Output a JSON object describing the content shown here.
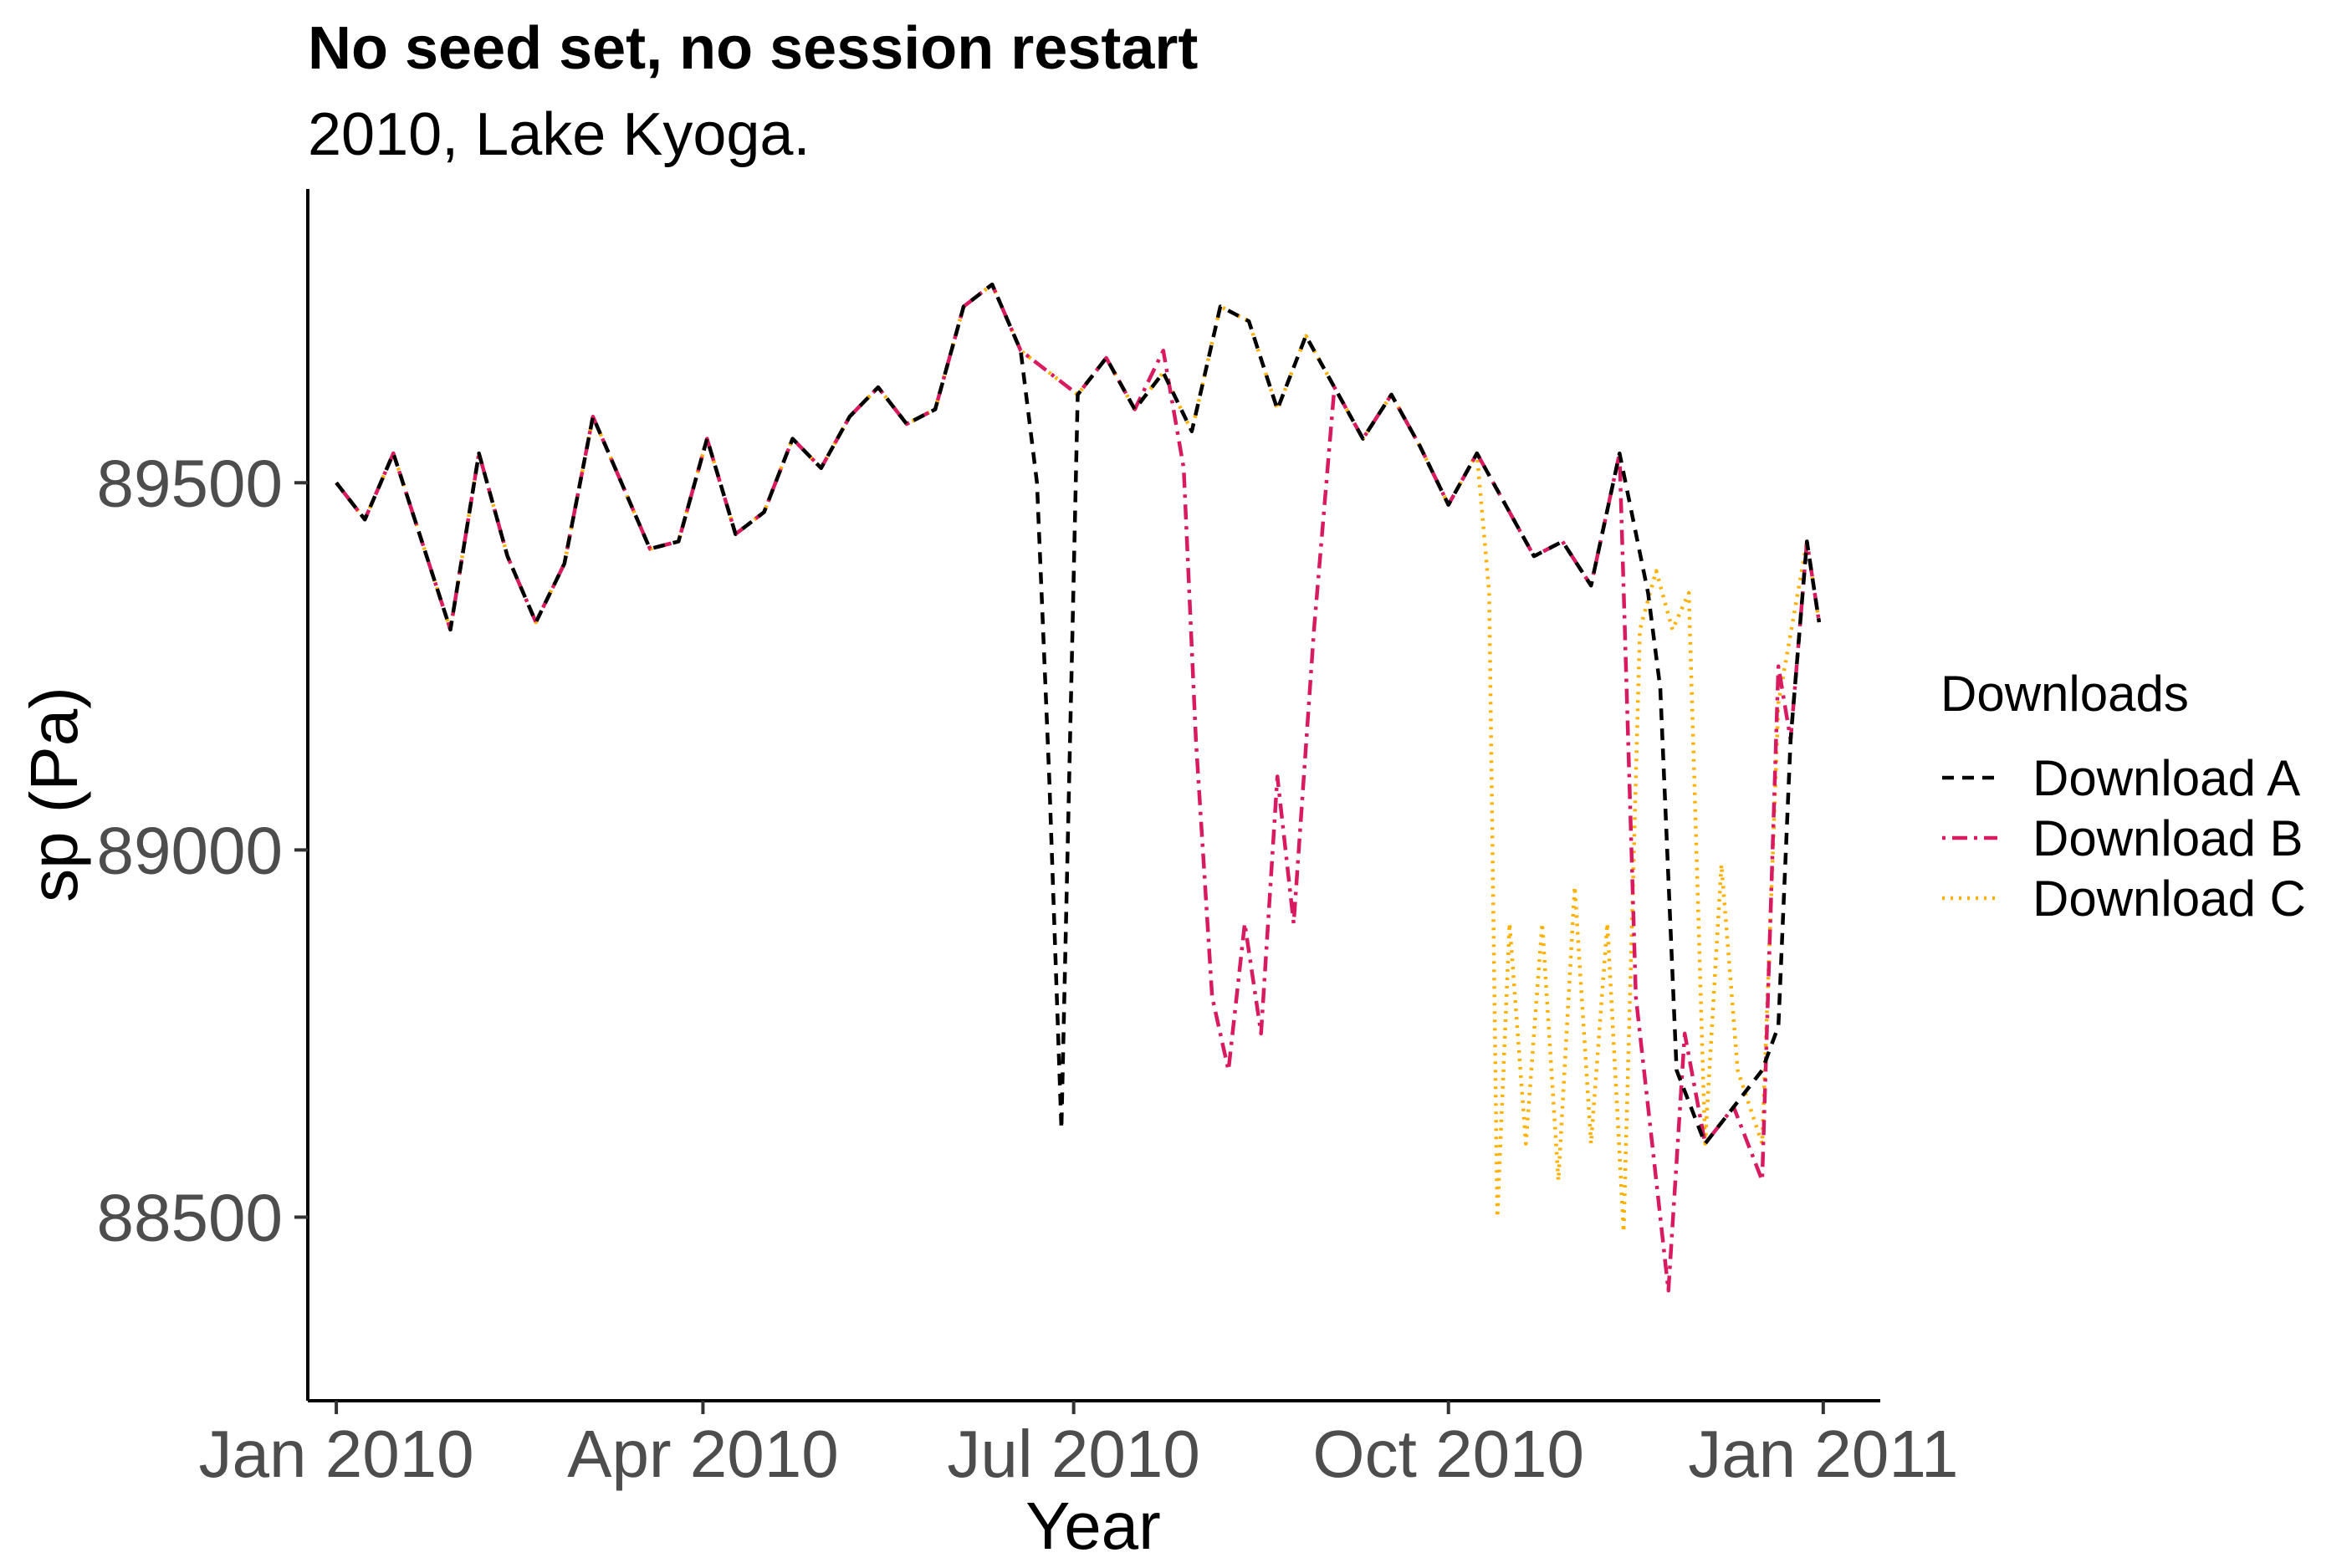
{
  "chart_data": {
    "type": "line",
    "title": "No seed set, no session restart",
    "subtitle": "2010, Lake Kyoga.",
    "xlabel": "Year",
    "ylabel": "sp (Pa)",
    "x_axis": {
      "type": "date",
      "range": [
        "2009-12-25",
        "2011-01-15"
      ],
      "ticks": [
        "2010-01-01",
        "2010-04-01",
        "2010-07-01",
        "2010-10-01",
        "2011-01-01"
      ],
      "tick_labels": [
        "Jan 2010",
        "Apr 2010",
        "Jul 2010",
        "Oct 2010",
        "Jan 2011"
      ]
    },
    "y_axis": {
      "range": [
        88250,
        89900
      ],
      "ticks": [
        88500,
        89000,
        89500
      ],
      "tick_labels": [
        "88500",
        "89000",
        "89500"
      ]
    },
    "grid": false,
    "legend": {
      "title": "Downloads",
      "position": "right"
    },
    "series": [
      {
        "name": "Download A",
        "color": "#000000",
        "dash": "dashed",
        "points": [
          [
            "2010-01-01",
            89500
          ],
          [
            "2010-01-08",
            89450
          ],
          [
            "2010-01-15",
            89540
          ],
          [
            "2010-01-22",
            89420
          ],
          [
            "2010-01-29",
            89300
          ],
          [
            "2010-02-05",
            89540
          ],
          [
            "2010-02-12",
            89400
          ],
          [
            "2010-02-19",
            89310
          ],
          [
            "2010-02-26",
            89390
          ],
          [
            "2010-03-05",
            89590
          ],
          [
            "2010-03-12",
            89500
          ],
          [
            "2010-03-19",
            89410
          ],
          [
            "2010-03-26",
            89420
          ],
          [
            "2010-04-02",
            89560
          ],
          [
            "2010-04-09",
            89430
          ],
          [
            "2010-04-16",
            89460
          ],
          [
            "2010-04-23",
            89560
          ],
          [
            "2010-04-30",
            89520
          ],
          [
            "2010-05-07",
            89590
          ],
          [
            "2010-05-14",
            89630
          ],
          [
            "2010-05-21",
            89580
          ],
          [
            "2010-05-28",
            89600
          ],
          [
            "2010-06-04",
            89740
          ],
          [
            "2010-06-11",
            89770
          ],
          [
            "2010-06-18",
            89680
          ],
          [
            "2010-06-22",
            89500
          ],
          [
            "2010-06-25",
            89100
          ],
          [
            "2010-06-28",
            88620
          ],
          [
            "2010-07-02",
            89620
          ],
          [
            "2010-07-09",
            89670
          ],
          [
            "2010-07-16",
            89600
          ],
          [
            "2010-07-23",
            89650
          ],
          [
            "2010-07-30",
            89570
          ],
          [
            "2010-08-06",
            89740
          ],
          [
            "2010-08-13",
            89720
          ],
          [
            "2010-08-20",
            89600
          ],
          [
            "2010-08-27",
            89700
          ],
          [
            "2010-09-03",
            89630
          ],
          [
            "2010-09-10",
            89560
          ],
          [
            "2010-09-17",
            89620
          ],
          [
            "2010-09-24",
            89550
          ],
          [
            "2010-10-01",
            89470
          ],
          [
            "2010-10-08",
            89540
          ],
          [
            "2010-10-15",
            89470
          ],
          [
            "2010-10-22",
            89400
          ],
          [
            "2010-10-29",
            89420
          ],
          [
            "2010-11-05",
            89360
          ],
          [
            "2010-11-12",
            89540
          ],
          [
            "2010-11-19",
            89350
          ],
          [
            "2010-11-22",
            89220
          ],
          [
            "2010-11-26",
            88700
          ],
          [
            "2010-12-03",
            88600
          ],
          [
            "2010-12-10",
            88650
          ],
          [
            "2010-12-17",
            88700
          ],
          [
            "2010-12-21",
            88760
          ],
          [
            "2010-12-24",
            89150
          ],
          [
            "2010-12-28",
            89420
          ],
          [
            "2010-12-31",
            89310
          ]
        ]
      },
      {
        "name": "Download B",
        "color": "#d81b60",
        "dash": "dotdash",
        "points": [
          [
            "2010-01-01",
            89500
          ],
          [
            "2010-01-08",
            89450
          ],
          [
            "2010-01-15",
            89540
          ],
          [
            "2010-01-22",
            89420
          ],
          [
            "2010-01-29",
            89300
          ],
          [
            "2010-02-05",
            89540
          ],
          [
            "2010-02-12",
            89400
          ],
          [
            "2010-02-19",
            89310
          ],
          [
            "2010-02-26",
            89390
          ],
          [
            "2010-03-05",
            89590
          ],
          [
            "2010-03-12",
            89500
          ],
          [
            "2010-03-19",
            89410
          ],
          [
            "2010-03-26",
            89420
          ],
          [
            "2010-04-02",
            89560
          ],
          [
            "2010-04-09",
            89430
          ],
          [
            "2010-04-16",
            89460
          ],
          [
            "2010-04-23",
            89560
          ],
          [
            "2010-04-30",
            89520
          ],
          [
            "2010-05-07",
            89590
          ],
          [
            "2010-05-14",
            89630
          ],
          [
            "2010-05-21",
            89580
          ],
          [
            "2010-05-28",
            89600
          ],
          [
            "2010-06-04",
            89740
          ],
          [
            "2010-06-11",
            89770
          ],
          [
            "2010-06-18",
            89680
          ],
          [
            "2010-06-25",
            89650
          ],
          [
            "2010-07-02",
            89620
          ],
          [
            "2010-07-09",
            89670
          ],
          [
            "2010-07-16",
            89600
          ],
          [
            "2010-07-23",
            89680
          ],
          [
            "2010-07-28",
            89520
          ],
          [
            "2010-07-31",
            89150
          ],
          [
            "2010-08-04",
            88800
          ],
          [
            "2010-08-08",
            88700
          ],
          [
            "2010-08-12",
            88900
          ],
          [
            "2010-08-16",
            88750
          ],
          [
            "2010-08-20",
            89100
          ],
          [
            "2010-08-24",
            88900
          ],
          [
            "2010-08-29",
            89300
          ],
          [
            "2010-09-03",
            89630
          ],
          [
            "2010-09-10",
            89560
          ],
          [
            "2010-09-17",
            89620
          ],
          [
            "2010-09-24",
            89550
          ],
          [
            "2010-10-01",
            89470
          ],
          [
            "2010-10-08",
            89540
          ],
          [
            "2010-10-15",
            89470
          ],
          [
            "2010-10-22",
            89400
          ],
          [
            "2010-10-29",
            89420
          ],
          [
            "2010-11-05",
            89360
          ],
          [
            "2010-11-12",
            89540
          ],
          [
            "2010-11-16",
            88800
          ],
          [
            "2010-11-20",
            88600
          ],
          [
            "2010-11-24",
            88400
          ],
          [
            "2010-11-28",
            88750
          ],
          [
            "2010-12-03",
            88600
          ],
          [
            "2010-12-10",
            88650
          ],
          [
            "2010-12-17",
            88550
          ],
          [
            "2010-12-21",
            89250
          ],
          [
            "2010-12-24",
            89150
          ],
          [
            "2010-12-28",
            89420
          ],
          [
            "2010-12-31",
            89310
          ]
        ]
      },
      {
        "name": "Download C",
        "color": "#ffb000",
        "dash": "dotted",
        "points": [
          [
            "2010-01-01",
            89500
          ],
          [
            "2010-01-08",
            89450
          ],
          [
            "2010-01-15",
            89540
          ],
          [
            "2010-01-22",
            89420
          ],
          [
            "2010-01-29",
            89300
          ],
          [
            "2010-02-05",
            89540
          ],
          [
            "2010-02-12",
            89400
          ],
          [
            "2010-02-19",
            89310
          ],
          [
            "2010-02-26",
            89390
          ],
          [
            "2010-03-05",
            89590
          ],
          [
            "2010-03-12",
            89500
          ],
          [
            "2010-03-19",
            89410
          ],
          [
            "2010-03-26",
            89420
          ],
          [
            "2010-04-02",
            89560
          ],
          [
            "2010-04-09",
            89430
          ],
          [
            "2010-04-16",
            89460
          ],
          [
            "2010-04-23",
            89560
          ],
          [
            "2010-04-30",
            89520
          ],
          [
            "2010-05-07",
            89590
          ],
          [
            "2010-05-14",
            89630
          ],
          [
            "2010-05-21",
            89580
          ],
          [
            "2010-05-28",
            89600
          ],
          [
            "2010-06-04",
            89740
          ],
          [
            "2010-06-11",
            89770
          ],
          [
            "2010-06-18",
            89680
          ],
          [
            "2010-06-25",
            89650
          ],
          [
            "2010-07-02",
            89620
          ],
          [
            "2010-07-09",
            89670
          ],
          [
            "2010-07-16",
            89600
          ],
          [
            "2010-07-23",
            89650
          ],
          [
            "2010-07-30",
            89570
          ],
          [
            "2010-08-06",
            89740
          ],
          [
            "2010-08-13",
            89720
          ],
          [
            "2010-08-20",
            89600
          ],
          [
            "2010-08-27",
            89700
          ],
          [
            "2010-09-03",
            89630
          ],
          [
            "2010-09-10",
            89560
          ],
          [
            "2010-09-17",
            89620
          ],
          [
            "2010-09-24",
            89550
          ],
          [
            "2010-10-01",
            89470
          ],
          [
            "2010-10-08",
            89540
          ],
          [
            "2010-10-11",
            89350
          ],
          [
            "2010-10-13",
            88500
          ],
          [
            "2010-10-16",
            88900
          ],
          [
            "2010-10-20",
            88600
          ],
          [
            "2010-10-24",
            88900
          ],
          [
            "2010-10-28",
            88550
          ],
          [
            "2010-11-01",
            88950
          ],
          [
            "2010-11-05",
            88600
          ],
          [
            "2010-11-09",
            88900
          ],
          [
            "2010-11-13",
            88480
          ],
          [
            "2010-11-17",
            89300
          ],
          [
            "2010-11-21",
            89380
          ],
          [
            "2010-11-25",
            89300
          ],
          [
            "2010-11-29",
            89350
          ],
          [
            "2010-12-03",
            88600
          ],
          [
            "2010-12-07",
            88980
          ],
          [
            "2010-12-11",
            88700
          ],
          [
            "2010-12-17",
            88600
          ],
          [
            "2010-12-21",
            89200
          ],
          [
            "2010-12-28",
            89420
          ],
          [
            "2010-12-31",
            89310
          ]
        ]
      }
    ]
  }
}
